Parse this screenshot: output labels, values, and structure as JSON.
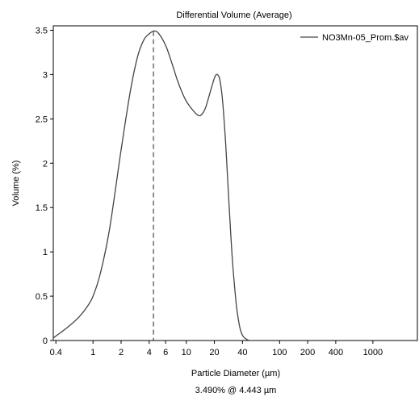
{
  "chart_data": {
    "type": "line",
    "title": "Differential Volume (Average)",
    "xlabel": "Particle Diameter (µm)",
    "ylabel": "Volume (%)",
    "x_scale": "log",
    "xlim": [
      0.375,
      3000
    ],
    "ylim": [
      0,
      3.55
    ],
    "x_ticks": [
      0.4,
      1,
      2,
      4,
      6,
      10,
      20,
      40,
      100,
      200,
      400,
      1000
    ],
    "x_tick_labels": [
      "0.4",
      "1",
      "2",
      "4",
      "6",
      "10",
      "20",
      "40",
      "100",
      "200",
      "400",
      "1000"
    ],
    "y_ticks": [
      0,
      0.5,
      1,
      1.5,
      2,
      2.5,
      3,
      3.5
    ],
    "y_tick_labels": [
      "0",
      "0.5",
      "1",
      "1.5",
      "2",
      "2.5",
      "3",
      "3.5"
    ],
    "grid": false,
    "legend_position": "top-right",
    "series": [
      {
        "name": "NO3Mn-05_Prom.$av",
        "color": "#444444",
        "x": [
          0.375,
          0.45,
          0.55,
          0.7,
          0.85,
          1.0,
          1.2,
          1.5,
          2.0,
          2.5,
          3.0,
          3.5,
          4.0,
          4.443,
          5.0,
          6.0,
          7.0,
          8.0,
          9.0,
          10.0,
          11.5,
          13.0,
          14.3,
          16.0,
          18.0,
          20.0,
          21.0,
          22.0,
          23.0,
          24.5,
          26.5,
          28.5,
          31.0,
          34.0,
          36.0,
          38.0,
          40.0,
          42.0,
          45.0,
          48.0,
          52.0
        ],
        "y": [
          0.03,
          0.09,
          0.16,
          0.26,
          0.37,
          0.5,
          0.76,
          1.25,
          2.15,
          2.8,
          3.2,
          3.39,
          3.46,
          3.49,
          3.47,
          3.33,
          3.13,
          2.94,
          2.8,
          2.7,
          2.61,
          2.55,
          2.54,
          2.62,
          2.8,
          2.96,
          3.0,
          2.99,
          2.93,
          2.7,
          2.2,
          1.6,
          0.95,
          0.45,
          0.25,
          0.12,
          0.06,
          0.03,
          0.01,
          0.0,
          0.0
        ]
      }
    ],
    "annotation": {
      "type": "vertical-dashed-line",
      "x": 4.443,
      "y": 3.49,
      "label": "3.490% @ 4.443 µm"
    }
  }
}
